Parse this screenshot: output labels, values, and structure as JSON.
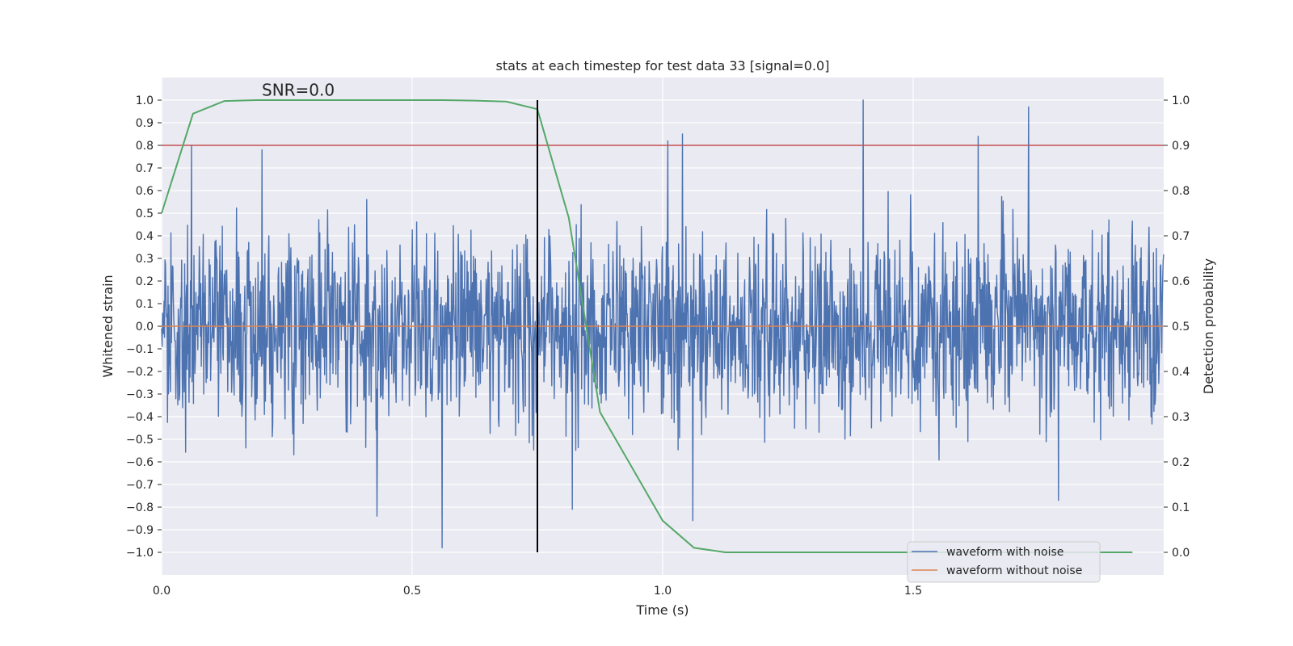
{
  "chart_data": {
    "type": "line",
    "title": "stats at each timestep for test data 33 [signal=0.0]",
    "xlabel": "Time (s)",
    "ylabel": "Whitened strain",
    "y2label": "Detection probability",
    "xlim": [
      0.0,
      2.0
    ],
    "ylim": [
      -1.1,
      1.1
    ],
    "y2lim": [
      -0.05,
      1.05
    ],
    "x_ticks": [
      0.0,
      0.5,
      1.0,
      1.5
    ],
    "x_tick_labels": [
      "0.0",
      "0.5",
      "1.0",
      "1.5"
    ],
    "y_ticks": [
      1.0,
      0.9,
      0.8,
      0.7,
      0.6,
      0.5,
      0.4,
      0.3,
      0.2,
      0.1,
      0.0,
      -0.1,
      -0.2,
      -0.3,
      -0.4,
      -0.5,
      -0.6,
      -0.7,
      -0.8,
      -0.9,
      -1.0
    ],
    "y_tick_labels": [
      "1.0",
      "0.9",
      "0.8",
      "0.7",
      "0.6",
      "0.5",
      "0.4",
      "0.3",
      "0.2",
      "0.1",
      "0.0",
      "−0.1",
      "−0.2",
      "−0.3",
      "−0.4",
      "−0.5",
      "−0.6",
      "−0.7",
      "−0.8",
      "−0.9",
      "−1.0"
    ],
    "y2_ticks": [
      1.0,
      0.9,
      0.8,
      0.7,
      0.6,
      0.5,
      0.4,
      0.3,
      0.2,
      0.1,
      0.0
    ],
    "y2_tick_labels": [
      "1.0",
      "0.9",
      "0.8",
      "0.7",
      "0.6",
      "0.5",
      "0.4",
      "0.3",
      "0.2",
      "0.1",
      "0.0"
    ],
    "grid": true,
    "legend_position": "bottom-right",
    "annotation": "SNR=0.0",
    "annotation_pos": [
      0.2,
      1.02
    ],
    "threshold": {
      "axis": "y2",
      "value": 0.9,
      "color": "#c44e52"
    },
    "marker_line": {
      "x": 0.75,
      "ymin": -1.0,
      "ymax": 1.0,
      "color": "#000000"
    },
    "noisy_waveform": {
      "name": "waveform with noise",
      "color": "#4c72b0",
      "x_range": [
        0.0,
        2.0
      ],
      "num_points": 2048,
      "amplitude_range": [
        -0.98,
        1.0
      ],
      "seed": 33,
      "peaks": [
        {
          "x": 0.06,
          "y": 0.8
        },
        {
          "x": 0.2,
          "y": 0.78
        },
        {
          "x": 0.56,
          "y": -0.98
        },
        {
          "x": 0.43,
          "y": -0.84
        },
        {
          "x": 0.82,
          "y": -0.81
        },
        {
          "x": 1.01,
          "y": 0.82
        },
        {
          "x": 1.04,
          "y": 0.85
        },
        {
          "x": 1.06,
          "y": -0.86
        },
        {
          "x": 1.4,
          "y": 1.0
        },
        {
          "x": 1.73,
          "y": 0.97
        },
        {
          "x": 1.63,
          "y": 0.84
        },
        {
          "x": 1.79,
          "y": -0.77
        }
      ]
    },
    "clean_waveform": {
      "name": "waveform without noise",
      "color": "#dd8452",
      "x": [
        0.0,
        2.0
      ],
      "y": [
        0.0,
        0.0
      ]
    },
    "probability": {
      "color": "#55a868",
      "x": [
        0.0,
        0.0625,
        0.125,
        0.1875,
        0.25,
        0.3125,
        0.375,
        0.4375,
        0.5,
        0.5625,
        0.625,
        0.6875,
        0.75,
        0.8125,
        0.875,
        0.9375,
        1.0,
        1.0625,
        1.125,
        1.1875,
        1.25,
        1.3125,
        1.375,
        1.4375,
        1.5,
        1.5625,
        1.625,
        1.6875,
        1.75,
        1.8125,
        1.875,
        1.9375
      ],
      "y": [
        0.75,
        0.97,
        0.998,
        1.0,
        1.0,
        1.0,
        1.0,
        1.0,
        1.0,
        1.0,
        0.999,
        0.997,
        0.98,
        0.74,
        0.31,
        0.19,
        0.07,
        0.01,
        0.0,
        0.0,
        0.0,
        0.0,
        0.0,
        0.0,
        0.0,
        0.0,
        0.0,
        0.0,
        0.0,
        0.0,
        0.0,
        0.0
      ]
    },
    "legend": [
      {
        "label": "waveform with noise",
        "color": "#4c72b0"
      },
      {
        "label": "waveform without noise",
        "color": "#dd8452"
      }
    ]
  }
}
